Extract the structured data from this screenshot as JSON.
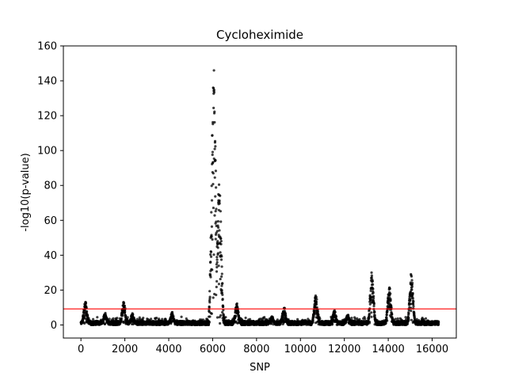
{
  "chart_data": {
    "type": "scatter",
    "title": "Cycloheximide",
    "xlabel": "SNP",
    "ylabel": "-log10(p-value)",
    "xlim": [
      -800,
      17100
    ],
    "ylim": [
      -7.5,
      160
    ],
    "xticks": [
      0,
      2000,
      4000,
      6000,
      8000,
      10000,
      12000,
      14000,
      16000
    ],
    "yticks": [
      0,
      20,
      40,
      60,
      80,
      100,
      120,
      140,
      160
    ],
    "threshold": {
      "y": 9.2,
      "color": "#ff0000"
    },
    "point_color": "#000000",
    "n_points": 16300,
    "grid": false,
    "peaks": [
      {
        "x": 200,
        "max": 13.5
      },
      {
        "x": 1100,
        "max": 7
      },
      {
        "x": 1950,
        "max": 14
      },
      {
        "x": 2350,
        "max": 7
      },
      {
        "x": 4150,
        "max": 7.5
      },
      {
        "x": 6050,
        "max": 153
      },
      {
        "x": 6300,
        "max": 83
      },
      {
        "x": 7100,
        "max": 12.5
      },
      {
        "x": 8700,
        "max": 5
      },
      {
        "x": 9250,
        "max": 10.5
      },
      {
        "x": 10700,
        "max": 17.5
      },
      {
        "x": 11550,
        "max": 8.5
      },
      {
        "x": 12150,
        "max": 6
      },
      {
        "x": 13250,
        "max": 31
      },
      {
        "x": 14050,
        "max": 22
      },
      {
        "x": 15050,
        "max": 30.5
      }
    ]
  }
}
